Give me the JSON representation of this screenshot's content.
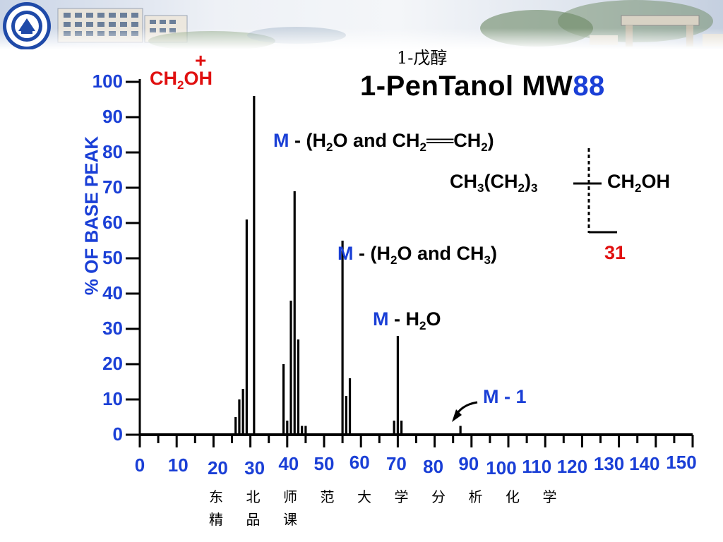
{
  "header": {
    "subtitle": "1-戊醇",
    "title_prefix": "1-PenTanol  MW",
    "title_mw": "88",
    "colors": {
      "black": "#000000",
      "blue": "#1a3fd6",
      "red": "#e01010"
    }
  },
  "annotations": {
    "ch2oh": {
      "main": "CH",
      "sub": "2",
      "tail": "OH",
      "charge": "+"
    },
    "m_h2o_ethylene": {
      "m": "M",
      "t1": " - (H",
      "s1": "2",
      "t2": "O and CH",
      "s2": "2",
      "bond": "══",
      "t3": "CH",
      "s3": "2",
      "t4": ")"
    },
    "m_h2o_ch3": {
      "m": "M",
      "t1": " - (H",
      "s1": "2",
      "t2": "O and CH",
      "s2": "3",
      "t3": ")"
    },
    "m_h2o": {
      "m": "M",
      "t1": " - H",
      "s1": "2",
      "t2": "O"
    },
    "m_1": {
      "m": "M",
      "t1": " - 1"
    }
  },
  "structure": {
    "left": {
      "a": "CH",
      "sa": "3",
      "b": "(CH",
      "sb": "2",
      "c": ")",
      "sc": "3"
    },
    "right": {
      "a": "CH",
      "sa": "2",
      "b": "OH"
    },
    "fragment": "31"
  },
  "footer": {
    "line1": [
      "东",
      "北",
      "师",
      "范",
      "大",
      "学",
      "分",
      "析",
      "化",
      "学"
    ],
    "line2": [
      "精",
      "品",
      "课"
    ]
  },
  "chart_data": {
    "type": "bar",
    "ylabel": "% OF  BASE PEAK",
    "xlabel": "",
    "xlim": [
      0,
      150
    ],
    "ylim": [
      0,
      100
    ],
    "x_ticks": [
      0,
      10,
      20,
      30,
      40,
      50,
      60,
      70,
      80,
      90,
      100,
      110,
      120,
      130,
      140,
      150
    ],
    "y_ticks": [
      0,
      10,
      20,
      30,
      40,
      50,
      60,
      70,
      80,
      90,
      100
    ],
    "peaks": [
      {
        "mz": 26,
        "intensity": 5
      },
      {
        "mz": 27,
        "intensity": 10
      },
      {
        "mz": 28,
        "intensity": 13
      },
      {
        "mz": 29,
        "intensity": 61
      },
      {
        "mz": 31,
        "intensity": 96
      },
      {
        "mz": 39,
        "intensity": 20
      },
      {
        "mz": 40,
        "intensity": 4
      },
      {
        "mz": 41,
        "intensity": 38
      },
      {
        "mz": 42,
        "intensity": 69
      },
      {
        "mz": 43,
        "intensity": 27
      },
      {
        "mz": 44,
        "intensity": 2.5
      },
      {
        "mz": 45,
        "intensity": 2.5
      },
      {
        "mz": 55,
        "intensity": 55
      },
      {
        "mz": 56,
        "intensity": 11
      },
      {
        "mz": 57,
        "intensity": 16
      },
      {
        "mz": 69,
        "intensity": 4
      },
      {
        "mz": 70,
        "intensity": 28
      },
      {
        "mz": 71,
        "intensity": 4
      },
      {
        "mz": 87,
        "intensity": 2.5
      }
    ]
  }
}
